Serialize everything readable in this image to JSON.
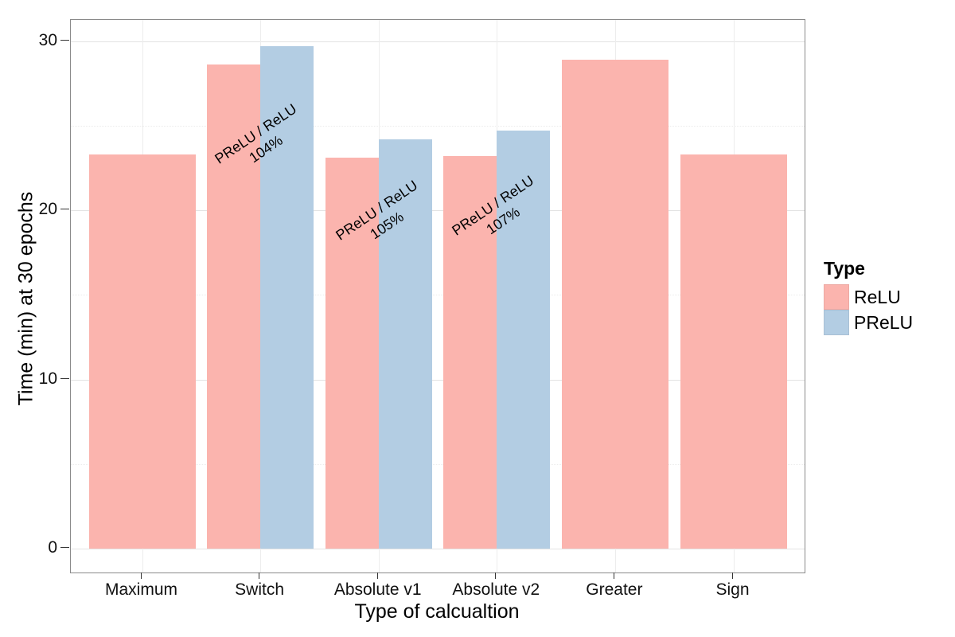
{
  "chart_data": {
    "type": "bar",
    "title": "",
    "xlabel": "Type of calcualtion",
    "ylabel": "Time (min) at 30 epochs",
    "categories": [
      "Maximum",
      "Switch",
      "Absolute v1",
      "Absolute v2",
      "Greater",
      "Sign"
    ],
    "series": [
      {
        "name": "ReLU",
        "color": "#FBB4AE",
        "values": [
          23.3,
          28.6,
          23.1,
          23.2,
          28.9,
          23.3
        ]
      },
      {
        "name": "PReLU",
        "color": "#B3CDE3",
        "values": [
          null,
          29.7,
          24.2,
          24.7,
          null,
          null
        ]
      }
    ],
    "yticks": [
      0,
      10,
      20,
      30
    ],
    "yticks_minor": [
      5,
      15,
      25
    ],
    "ylim": [
      -1.4,
      31.3
    ],
    "grid": true,
    "legend_position": "right",
    "annotations": [
      {
        "category_index": 1,
        "lines": [
          "PReLU / ReLU",
          "104%"
        ]
      },
      {
        "category_index": 2,
        "lines": [
          "PReLU / ReLU",
          "105%"
        ]
      },
      {
        "category_index": 3,
        "lines": [
          "PReLU / ReLU",
          "107%"
        ]
      }
    ]
  },
  "legend": {
    "title": "Type",
    "items": [
      {
        "label": "ReLU",
        "color": "#FBB4AE"
      },
      {
        "label": "PReLU",
        "color": "#B3CDE3"
      }
    ]
  },
  "colors": {
    "relu": "#FBB4AE",
    "prelu": "#B3CDE3",
    "panel_border": "#8a8a8a",
    "grid_major": "#e3e3e3",
    "grid_minor": "#ececec"
  }
}
